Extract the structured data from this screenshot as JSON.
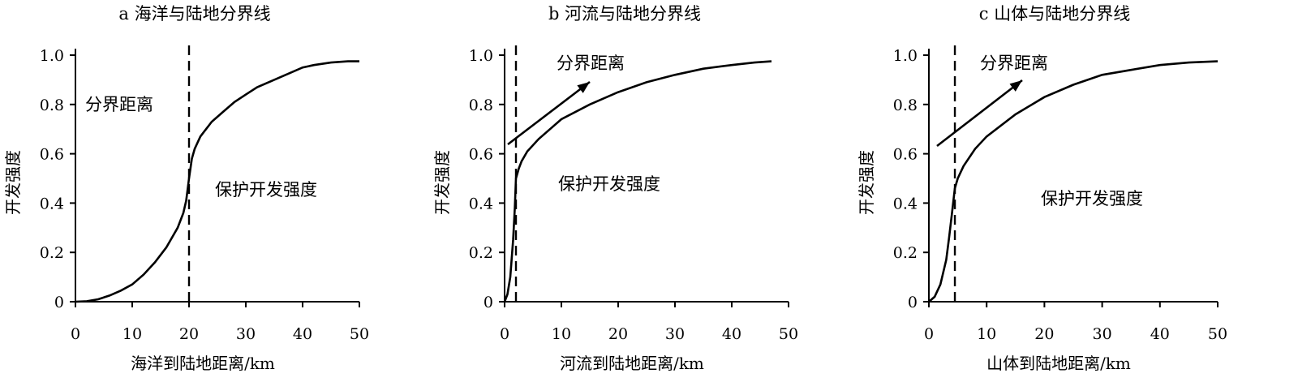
{
  "chart_data": [
    {
      "type": "line",
      "title": "a 海洋与陆地分界线",
      "xlabel": "海洋到陆地距离/km",
      "ylabel": "开发强度",
      "xlim": [
        0,
        50
      ],
      "ylim": [
        0,
        1.0
      ],
      "xticks": [
        "0",
        "10",
        "20",
        "30",
        "40",
        "50"
      ],
      "yticks": [
        "0",
        "0.2",
        "0.4",
        "0.6",
        "0.8",
        "1.0"
      ],
      "boundary_x": 20,
      "series": [
        {
          "x": [
            0,
            2,
            4,
            6,
            8,
            10,
            12,
            14,
            16,
            18,
            19,
            19.5,
            20,
            20.5,
            21,
            22,
            24,
            26,
            28,
            30,
            32,
            35,
            38,
            40,
            42,
            45,
            48,
            50
          ],
          "y": [
            0,
            0.002,
            0.01,
            0.025,
            0.045,
            0.07,
            0.11,
            0.16,
            0.22,
            0.3,
            0.36,
            0.41,
            0.5,
            0.58,
            0.62,
            0.67,
            0.73,
            0.77,
            0.81,
            0.84,
            0.87,
            0.9,
            0.93,
            0.95,
            0.96,
            0.97,
            0.975,
            0.975
          ]
        }
      ],
      "annotations": [
        "分界距离",
        "保护开发强度"
      ]
    },
    {
      "type": "line",
      "title": "b 河流与陆地分界线",
      "xlabel": "河流到陆地距离/km",
      "ylabel": "开发强度",
      "xlim": [
        0,
        50
      ],
      "ylim": [
        0,
        1.0
      ],
      "xticks": [
        "0",
        "10",
        "20",
        "30",
        "40",
        "50"
      ],
      "yticks": [
        "0",
        "0.2",
        "0.4",
        "0.6",
        "0.8",
        "1.0"
      ],
      "boundary_x": 2,
      "series": [
        {
          "x": [
            0,
            0.5,
            1,
            1.5,
            1.8,
            2,
            2.5,
            3,
            4,
            6,
            8,
            10,
            15,
            20,
            25,
            30,
            35,
            40,
            44,
            47
          ],
          "y": [
            0,
            0.03,
            0.1,
            0.25,
            0.38,
            0.5,
            0.54,
            0.57,
            0.61,
            0.66,
            0.7,
            0.74,
            0.8,
            0.85,
            0.89,
            0.92,
            0.945,
            0.96,
            0.97,
            0.975
          ]
        }
      ],
      "annotations": [
        "分界距离",
        "保护开发强度"
      ]
    },
    {
      "type": "line",
      "title": "c 山体与陆地分界线",
      "xlabel": "山体到陆地距离/km",
      "ylabel": "开发强度",
      "xlim": [
        0,
        50
      ],
      "ylim": [
        0,
        1.0
      ],
      "xticks": [
        "0",
        "10",
        "20",
        "30",
        "40",
        "50"
      ],
      "yticks": [
        "0",
        "0.2",
        "0.4",
        "0.6",
        "0.8",
        "1.0"
      ],
      "boundary_x": 4.5,
      "series": [
        {
          "x": [
            0,
            1,
            2,
            3,
            3.5,
            4,
            4.5,
            5,
            6,
            8,
            10,
            15,
            20,
            25,
            30,
            35,
            40,
            45,
            50
          ],
          "y": [
            0,
            0.02,
            0.07,
            0.17,
            0.26,
            0.36,
            0.46,
            0.5,
            0.55,
            0.62,
            0.67,
            0.76,
            0.83,
            0.88,
            0.92,
            0.94,
            0.96,
            0.97,
            0.975
          ]
        }
      ],
      "annotations": [
        "分界距离",
        "保护开发强度"
      ]
    }
  ]
}
